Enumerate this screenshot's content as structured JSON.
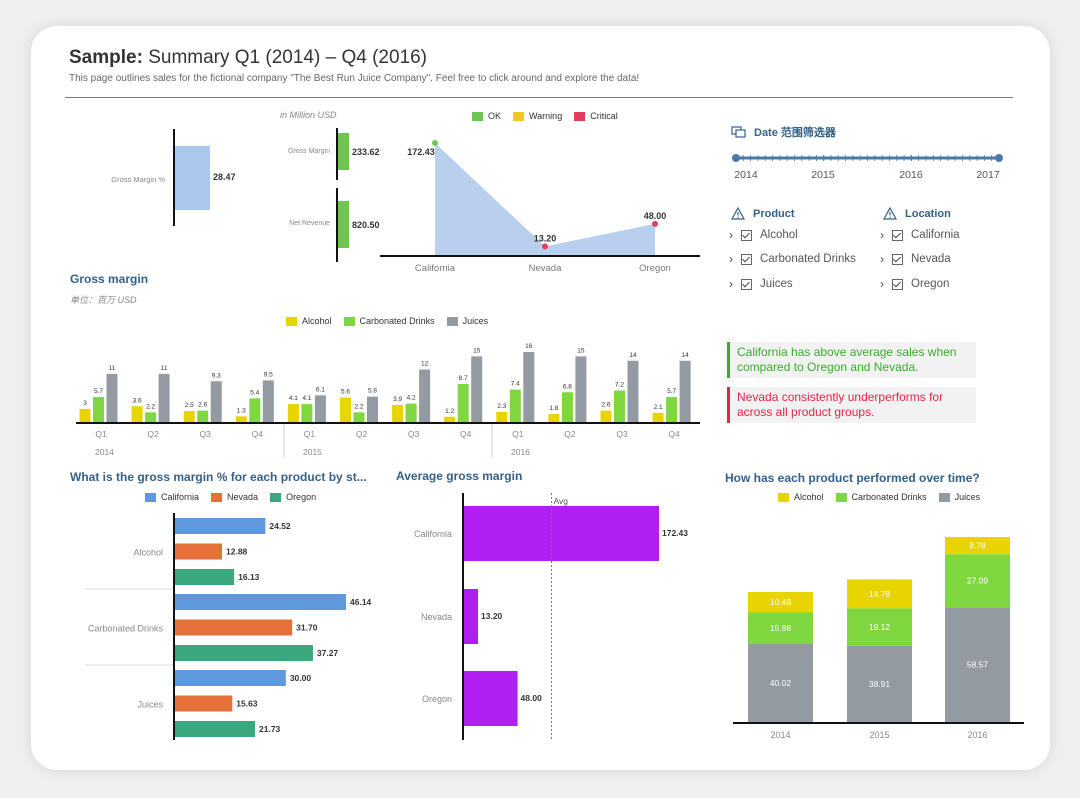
{
  "header": {
    "title_bold": "Sample:",
    "title_rest": "Summary Q1 (2014) – Q4 (2016)",
    "subtitle": "This page outlines sales for the fictional company \"The Best Run Juice Company\". Feel free to click around and explore the data!"
  },
  "colors": {
    "ok": "#6ec552",
    "warning": "#f0c525",
    "critical": "#e33e5c",
    "alcohol": "#e7d400",
    "carbonated": "#7fd73f",
    "juices": "#939aa1",
    "california": "#5f98dc",
    "nevada": "#e6703a",
    "oregon": "#3ba77c",
    "purple": "#b01ef1",
    "area_fill": "#b8d0ee",
    "kpi_blue": "#a9c8ec"
  },
  "kpis": {
    "gross_margin_pct": {
      "label": "Gross Margin %",
      "value": "28.47"
    },
    "unit": "in Million USD",
    "gross_margin": {
      "label": "Gross Margin",
      "value": "233.62"
    },
    "net_revenue": {
      "label": "Net Revenue",
      "value": "820.50"
    }
  },
  "date_filter": {
    "title": "Date 范围筛选器",
    "icon": "calendar-range-icon",
    "years": [
      "2014",
      "2015",
      "2016",
      "2017"
    ]
  },
  "filters": {
    "product": {
      "title": "Product",
      "icon": "warning-triangle-icon",
      "items": [
        "Alcohol",
        "Carbonated Drinks",
        "Juices"
      ]
    },
    "location": {
      "title": "Location",
      "icon": "warning-triangle-icon",
      "items": [
        "California",
        "Nevada",
        "Oregon"
      ]
    }
  },
  "insights": {
    "positive": "California has above average sales when compared to Oregon and Nevada.",
    "negative": "Nevada consistently underperforms for across all product groups."
  },
  "chart_data": [
    {
      "id": "area_by_state",
      "type": "area",
      "legend": [
        "OK",
        "Warning",
        "Critical"
      ],
      "categories": [
        "California",
        "Nevada",
        "Oregon"
      ],
      "values": [
        172.43,
        13.2,
        48.0
      ],
      "value_labels": [
        "172.43",
        "13.20",
        "48.00"
      ],
      "point_status": [
        "OK",
        "Critical",
        "Critical"
      ],
      "ylim": [
        0,
        180
      ]
    },
    {
      "id": "gross_margin_quarterly",
      "type": "bar",
      "title": "Gross margin",
      "unit": "单位：百万 USD",
      "legend": [
        "Alcohol",
        "Carbonated Drinks",
        "Juices"
      ],
      "quarters": [
        "Q1",
        "Q2",
        "Q3",
        "Q4",
        "Q1",
        "Q2",
        "Q3",
        "Q4",
        "Q1",
        "Q2",
        "Q3",
        "Q4"
      ],
      "years": [
        "2014",
        "2015",
        "2016"
      ],
      "series": [
        {
          "name": "Alcohol",
          "values": [
            3,
            3.6,
            2.5,
            1.3,
            4.1,
            5.6,
            3.9,
            1.2,
            2.3,
            1.8,
            2.6,
            2.1
          ],
          "labels": [
            "3",
            "3.6",
            "2.5",
            "1.3",
            "4.1",
            "5.6",
            "3.9",
            "1.2",
            "2.3",
            "1.8",
            "2.6",
            "2.1"
          ]
        },
        {
          "name": "Carbonated Drinks",
          "values": [
            5.7,
            2.2,
            2.6,
            5.4,
            4.1,
            2.2,
            4.2,
            8.7,
            7.4,
            6.8,
            7.2,
            5.7
          ],
          "labels": [
            "5.7",
            "2.2",
            "2.6",
            "5.4",
            "4.1",
            "2.2",
            "4.2",
            "8.7",
            "7.4",
            "6.8",
            "7.2",
            "5.7"
          ]
        },
        {
          "name": "Juices",
          "values": [
            11,
            11,
            9.3,
            9.5,
            6.1,
            5.8,
            12,
            15,
            16,
            15,
            14,
            14
          ],
          "labels": [
            "11",
            "11",
            "9.3",
            "9.5",
            "6.1",
            "5.8",
            "12",
            "15",
            "16",
            "15",
            "14",
            "14"
          ]
        }
      ],
      "ylim": [
        0,
        16
      ]
    },
    {
      "id": "gm_pct_by_product_state",
      "type": "bar",
      "orientation": "horizontal",
      "title": "What is the gross margin % for each product by st...",
      "legend": [
        "California",
        "Nevada",
        "Oregon"
      ],
      "categories": [
        "Alcohol",
        "Carbonated Drinks",
        "Juices"
      ],
      "series": [
        {
          "name": "California",
          "values": [
            24.52,
            46.14,
            30.0
          ],
          "labels": [
            "24.52",
            "46.14",
            "30.00"
          ]
        },
        {
          "name": "Nevada",
          "values": [
            12.88,
            31.7,
            15.63
          ],
          "labels": [
            "12.88",
            "31.70",
            "15.63"
          ]
        },
        {
          "name": "Oregon",
          "values": [
            16.13,
            37.27,
            21.73
          ],
          "labels": [
            "16.13",
            "37.27",
            "21.73"
          ]
        }
      ],
      "xlim": [
        0,
        50
      ]
    },
    {
      "id": "avg_gross_margin",
      "type": "bar",
      "orientation": "horizontal",
      "title": "Average gross margin",
      "reference_line": {
        "label": "Avg",
        "value": 77.88
      },
      "categories": [
        "California",
        "Nevada",
        "Oregon"
      ],
      "values": [
        172.43,
        13.2,
        48.0
      ],
      "labels": [
        "172.43",
        "13.20",
        "48.00"
      ],
      "xlim": [
        0,
        180
      ]
    },
    {
      "id": "product_over_time",
      "type": "bar",
      "stacked": true,
      "title": "How has each product performed over time?",
      "legend": [
        "Alcohol",
        "Carbonated Drinks",
        "Juices"
      ],
      "categories": [
        "2014",
        "2015",
        "2016"
      ],
      "series": [
        {
          "name": "Juices",
          "values": [
            40.02,
            38.91,
            58.57
          ],
          "labels": [
            "40.02",
            "38.91",
            "58.57"
          ]
        },
        {
          "name": "Carbonated Drinks",
          "values": [
            15.88,
            19.12,
            27.09
          ],
          "labels": [
            "15.88",
            "19.12",
            "27.09"
          ]
        },
        {
          "name": "Alcohol",
          "values": [
            10.48,
            14.78,
            8.78
          ],
          "labels": [
            "10.48",
            "14.78",
            "8.78"
          ]
        }
      ],
      "ylim": [
        0,
        100
      ]
    }
  ]
}
